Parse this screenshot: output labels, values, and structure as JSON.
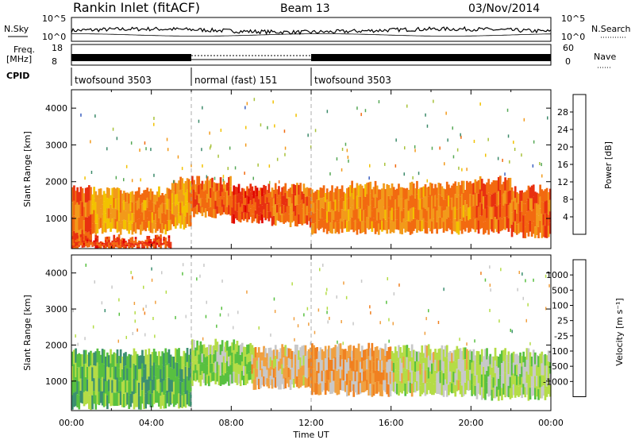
{
  "header": {
    "station": "Rankin Inlet (fitACF)",
    "beam": "Beam 13",
    "date": "03/Nov/2014"
  },
  "status_panels": {
    "nsky_label": "N.Sky",
    "nsky_ticks": [
      "10^5",
      "10^0"
    ],
    "nsearch_label": "N.Search",
    "nsearch_ticks": [
      "10^5",
      "10^0"
    ],
    "freq_label_1": "Freq.",
    "freq_label_2": "[MHz]",
    "freq_ticks": [
      "18",
      "8"
    ],
    "nave_label": "Nave",
    "nave_ticks": [
      "60",
      "0"
    ],
    "cpid_label": "CPID",
    "cpid_segments": [
      {
        "label": "twofsound 3503",
        "start_hour": 0,
        "end_hour": 6
      },
      {
        "label": "normal (fast) 151",
        "start_hour": 6,
        "end_hour": 12
      },
      {
        "label": "twofsound 3503",
        "start_hour": 12,
        "end_hour": 24
      }
    ]
  },
  "chart_data": [
    {
      "type": "heatmap",
      "name": "power",
      "ylabel": "Slant Range [km]",
      "ylim": [
        180,
        4500
      ],
      "yticks": [
        "1000",
        "2000",
        "3000",
        "4000"
      ],
      "xlim": [
        0,
        24
      ],
      "colorbar": {
        "label": "Power [dB]",
        "range": [
          0,
          32
        ],
        "ticks": [
          "4",
          "8",
          "12",
          "16",
          "20",
          "24",
          "28"
        ],
        "colors": [
          "#1d1de0",
          "#3a5fc0",
          "#3c8a6a",
          "#55a855",
          "#a8c23a",
          "#f2c200",
          "#f29a1a",
          "#f26a10",
          "#e83010",
          "#e00000"
        ]
      },
      "bands": [
        {
          "start_hour": 0.0,
          "end_hour": 1.0,
          "range_low": 300,
          "range_high": 1800,
          "level": 24
        },
        {
          "start_hour": 1.0,
          "end_hour": 3.0,
          "range_low": 650,
          "range_high": 1750,
          "level": 20
        },
        {
          "start_hour": 3.0,
          "end_hour": 5.0,
          "range_low": 650,
          "range_high": 1750,
          "level": 22
        },
        {
          "start_hour": 5.0,
          "end_hour": 6.0,
          "range_low": 800,
          "range_high": 2050,
          "level": 20
        },
        {
          "start_hour": 6.0,
          "end_hour": 8.0,
          "range_low": 1100,
          "range_high": 2050,
          "level": 24
        },
        {
          "start_hour": 8.0,
          "end_hour": 10.0,
          "range_low": 950,
          "range_high": 1850,
          "level": 26
        },
        {
          "start_hour": 10.0,
          "end_hour": 12.0,
          "range_low": 850,
          "range_high": 1850,
          "level": 24
        },
        {
          "start_hour": 12.0,
          "end_hour": 14.0,
          "range_low": 650,
          "range_high": 1800,
          "level": 22
        },
        {
          "start_hour": 14.0,
          "end_hour": 17.0,
          "range_low": 650,
          "range_high": 1900,
          "level": 22
        },
        {
          "start_hour": 17.0,
          "end_hour": 20.0,
          "range_low": 650,
          "range_high": 1900,
          "level": 22
        },
        {
          "start_hour": 20.0,
          "end_hour": 22.0,
          "range_low": 650,
          "range_high": 2050,
          "level": 24
        },
        {
          "start_hour": 22.0,
          "end_hour": 24.0,
          "range_low": 550,
          "range_high": 1800,
          "level": 24
        },
        {
          "start_hour": 0.0,
          "end_hour": 5.0,
          "range_low": 200,
          "range_high": 450,
          "level": 26
        }
      ]
    },
    {
      "type": "heatmap",
      "name": "velocity",
      "ylabel": "Slant Range [km]",
      "ylim": [
        180,
        4500
      ],
      "yticks": [
        "1000",
        "2000",
        "3000",
        "4000"
      ],
      "xlabel": "Time UT",
      "xlim": [
        0,
        24
      ],
      "xticks": [
        "00:00",
        "04:00",
        "08:00",
        "12:00",
        "16:00",
        "20:00",
        "00:00"
      ],
      "colorbar": {
        "label": "Velocity [m s⁻¹]",
        "range": [
          -1000,
          1000
        ],
        "ticks": [
          "1000",
          "500",
          "100",
          "25",
          "-25",
          "-100",
          "-500",
          "-1000"
        ],
        "colors": [
          "#1f3cb4",
          "#2f6aa0",
          "#3c9070",
          "#58c040",
          "#b4dc46",
          "#c8c8c8",
          "#f0a040",
          "#f08020",
          "#f04a10",
          "#e00000"
        ]
      },
      "bands": [
        {
          "start_hour": 0.0,
          "end_hour": 6.0,
          "range_low": 300,
          "range_high": 1800,
          "level": 300
        },
        {
          "start_hour": 6.0,
          "end_hour": 9.0,
          "range_low": 950,
          "range_high": 2050,
          "level": 150
        },
        {
          "start_hour": 9.0,
          "end_hour": 12.0,
          "range_low": 850,
          "range_high": 1900,
          "level": -200
        },
        {
          "start_hour": 12.0,
          "end_hour": 16.0,
          "range_low": 650,
          "range_high": 1950,
          "level": -300
        },
        {
          "start_hour": 16.0,
          "end_hour": 20.0,
          "range_low": 650,
          "range_high": 1900,
          "level": 0
        },
        {
          "start_hour": 20.0,
          "end_hour": 24.0,
          "range_low": 550,
          "range_high": 1800,
          "level": 60
        }
      ]
    }
  ]
}
